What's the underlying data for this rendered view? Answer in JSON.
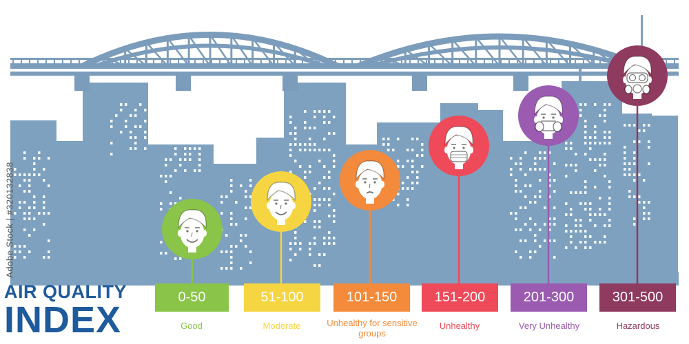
{
  "title": {
    "line1": "AIR QUALITY",
    "line2": "INDEX"
  },
  "side_text": "Adobe Stock | #320132838",
  "colors": {
    "title": "#1e5a9c",
    "skyline": "#7ea1bf",
    "bridge": "#7c9cbb",
    "window": "#ffffff"
  },
  "levels": [
    {
      "range": "0-50",
      "category": "Good",
      "color": "#8ac449",
      "expression": "smile",
      "wear": "none"
    },
    {
      "range": "51-100",
      "category": "Moderate",
      "color": "#f5d541",
      "expression": "smile",
      "wear": "none"
    },
    {
      "range": "101-150",
      "category": "Unhealthy for sensitive groups",
      "color": "#f48a3b",
      "expression": "sad",
      "wear": "none"
    },
    {
      "range": "151-200",
      "category": "Unhealthy",
      "color": "#ee4a59",
      "expression": "neutral",
      "wear": "mask"
    },
    {
      "range": "201-300",
      "category": "Very Unhealthy",
      "color": "#9a5bb1",
      "expression": "neutral",
      "wear": "respirator"
    },
    {
      "range": "301-500",
      "category": "Hazardous",
      "color": "#8f3a5f",
      "expression": "neutral",
      "wear": "gas-mask"
    }
  ]
}
